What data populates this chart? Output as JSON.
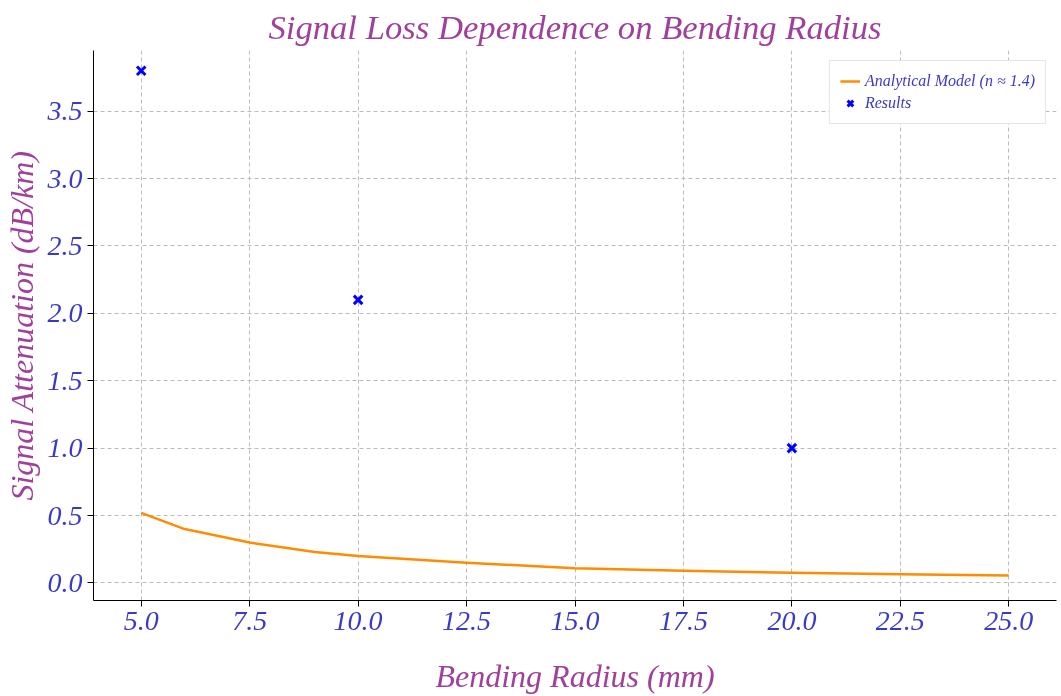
{
  "chart_data": {
    "type": "line",
    "title": "Signal Loss Dependence on Bending Radius",
    "xlabel": "Bending Radius (mm)",
    "ylabel": "Signal Attenuation (dB/km)",
    "series": [
      {
        "name": "Analytical Model (n ≈ 1.4)",
        "color": "#ff8c00",
        "x": [
          5,
          6,
          7.5,
          9,
          10,
          12.5,
          15,
          17.5,
          20,
          22.5,
          25
        ],
        "values": [
          0.52,
          0.4,
          0.3,
          0.23,
          0.2,
          0.15,
          0.11,
          0.09,
          0.075,
          0.065,
          0.055
        ],
        "marker": "none"
      },
      {
        "name": "Results",
        "type": "scatter",
        "color": "#0000ff",
        "x": [
          5,
          10,
          20
        ],
        "values": [
          3.8,
          2.1,
          1.0
        ],
        "marker": "cross"
      }
    ],
    "xlim": [
      3.9,
      26.1
    ],
    "ylim": [
      -0.13,
      3.95
    ],
    "xticks": [
      {
        "value": 5,
        "label": "5.0"
      },
      {
        "value": 7.5,
        "label": "7.5"
      },
      {
        "value": 10,
        "label": "10.0"
      },
      {
        "value": 12.5,
        "label": "12.5"
      },
      {
        "value": 15,
        "label": "15.0"
      },
      {
        "value": 17.5,
        "label": "17.5"
      },
      {
        "value": 20,
        "label": "20.0"
      },
      {
        "value": 22.5,
        "label": "22.5"
      },
      {
        "value": 25,
        "label": "25.0"
      }
    ],
    "yticks": [
      {
        "value": 0,
        "label": "0.0"
      },
      {
        "value": 0.5,
        "label": "0.5"
      },
      {
        "value": 1,
        "label": "1.0"
      },
      {
        "value": 1.5,
        "label": "1.5"
      },
      {
        "value": 2,
        "label": "2.0"
      },
      {
        "value": 2.5,
        "label": "2.5"
      },
      {
        "value": 3,
        "label": "3.0"
      },
      {
        "value": 3.5,
        "label": "3.5"
      }
    ],
    "grid": true,
    "legend": "top right"
  }
}
